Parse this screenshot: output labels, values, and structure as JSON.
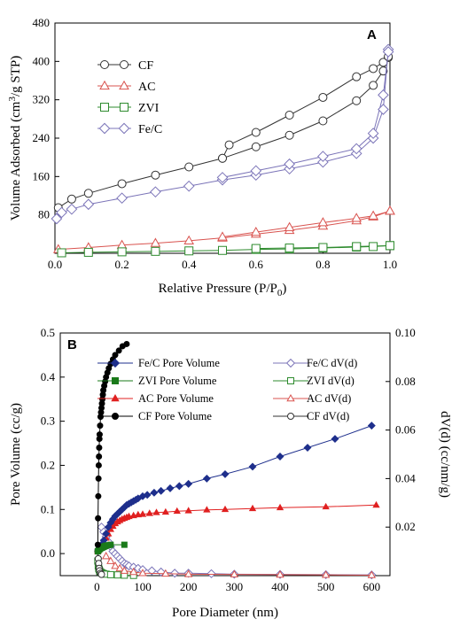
{
  "chart_data": [
    {
      "type": "scatter",
      "panel": "A",
      "xlabel": "Relative Pressure (P/P",
      "xlabel_sub": "0",
      "xlabel_tail": ")",
      "ylabel": "Volume Adsorbed (cm",
      "ylabel_sup": "3",
      "ylabel_tail": "/g STP)",
      "xlim": [
        0.0,
        1.0
      ],
      "ylim": [
        0,
        480
      ],
      "xticks": [
        "0.0",
        "0.2",
        "0.4",
        "0.6",
        "0.8",
        "1.0"
      ],
      "yticks": [
        "80",
        "160",
        "240",
        "320",
        "400",
        "480"
      ],
      "legend_position": "upper-left",
      "series": [
        {
          "name": "CF",
          "color": "#333333",
          "marker": "circle",
          "adsorption": [
            [
              0.01,
              95
            ],
            [
              0.05,
              113
            ],
            [
              0.1,
              125
            ],
            [
              0.2,
              145
            ],
            [
              0.3,
              163
            ],
            [
              0.4,
              180
            ],
            [
              0.5,
              198
            ],
            [
              0.6,
              222
            ],
            [
              0.7,
              246
            ],
            [
              0.8,
              276
            ],
            [
              0.9,
              318
            ],
            [
              0.95,
              350
            ],
            [
              0.98,
              380
            ],
            [
              0.995,
              408
            ]
          ],
          "desorption": [
            [
              0.5,
              198
            ],
            [
              0.52,
              226
            ],
            [
              0.6,
              252
            ],
            [
              0.7,
              288
            ],
            [
              0.8,
              325
            ],
            [
              0.9,
              368
            ],
            [
              0.95,
              385
            ],
            [
              0.98,
              398
            ],
            [
              0.995,
              410
            ]
          ]
        },
        {
          "name": "AC",
          "color": "#d9534f",
          "marker": "triangle",
          "adsorption": [
            [
              0.01,
              8
            ],
            [
              0.1,
              12
            ],
            [
              0.2,
              17
            ],
            [
              0.3,
              21
            ],
            [
              0.4,
              26
            ],
            [
              0.5,
              32
            ],
            [
              0.6,
              40
            ],
            [
              0.7,
              48
            ],
            [
              0.8,
              57
            ],
            [
              0.9,
              68
            ],
            [
              0.95,
              76
            ],
            [
              1.0,
              88
            ]
          ],
          "desorption": [
            [
              0.5,
              34
            ],
            [
              0.6,
              44
            ],
            [
              0.7,
              54
            ],
            [
              0.8,
              64
            ],
            [
              0.9,
              73
            ],
            [
              0.95,
              78
            ],
            [
              1.0,
              88
            ]
          ]
        },
        {
          "name": "ZVI",
          "color": "#2e8b2e",
          "marker": "square",
          "adsorption": [
            [
              0.02,
              1
            ],
            [
              0.1,
              2
            ],
            [
              0.2,
              3
            ],
            [
              0.3,
              4
            ],
            [
              0.4,
              5
            ],
            [
              0.5,
              6
            ],
            [
              0.6,
              8
            ],
            [
              0.7,
              9
            ],
            [
              0.8,
              11
            ],
            [
              0.9,
              13
            ],
            [
              0.95,
              14
            ],
            [
              1.0,
              16
            ]
          ],
          "desorption": [
            [
              0.6,
              10
            ],
            [
              0.7,
              11
            ],
            [
              0.8,
              12
            ],
            [
              0.9,
              14
            ],
            [
              1.0,
              16
            ]
          ]
        },
        {
          "name": "Fe/C",
          "color": "#7b74b8",
          "marker": "diamond",
          "adsorption": [
            [
              0.005,
              72
            ],
            [
              0.02,
              85
            ],
            [
              0.05,
              92
            ],
            [
              0.1,
              102
            ],
            [
              0.2,
              115
            ],
            [
              0.3,
              128
            ],
            [
              0.4,
              140
            ],
            [
              0.5,
              153
            ],
            [
              0.6,
              163
            ],
            [
              0.7,
              176
            ],
            [
              0.8,
              190
            ],
            [
              0.9,
              208
            ],
            [
              0.95,
              240
            ],
            [
              0.98,
              300
            ],
            [
              0.995,
              425
            ]
          ],
          "desorption": [
            [
              0.5,
              158
            ],
            [
              0.6,
              172
            ],
            [
              0.7,
              186
            ],
            [
              0.8,
              202
            ],
            [
              0.9,
              218
            ],
            [
              0.95,
              250
            ],
            [
              0.98,
              330
            ],
            [
              0.995,
              420
            ]
          ]
        }
      ]
    },
    {
      "type": "scatter",
      "panel": "B",
      "xlabel": "Pore Diameter (nm)",
      "ylabel_left": "Pore Volume (cc/g)",
      "ylabel_right": "dV(d) (cc/nm/g)",
      "xlim": [
        -80,
        640
      ],
      "ylim_left": [
        -0.05,
        0.5
      ],
      "ylim_right": [
        0,
        0.1
      ],
      "xticks": [
        "0",
        "100",
        "200",
        "300",
        "400",
        "500",
        "600"
      ],
      "yticks_left": [
        "0.0",
        "0.1",
        "0.2",
        "0.3",
        "0.4",
        "0.5"
      ],
      "yticks_right": [
        "0.02",
        "0.04",
        "0.06",
        "0.08",
        "0.10"
      ],
      "legend_position": "top",
      "series": [
        {
          "name": "Fe/C Pore Volume",
          "axis": "left",
          "color": "#1e2f8c",
          "marker": "diamond-filled",
          "x": [
            3,
            10,
            15,
            20,
            25,
            30,
            35,
            40,
            45,
            50,
            55,
            60,
            65,
            70,
            75,
            80,
            85,
            90,
            100,
            110,
            125,
            140,
            160,
            180,
            200,
            240,
            280,
            340,
            400,
            460,
            520,
            600
          ],
          "y": [
            0.01,
            0.02,
            0.03,
            0.045,
            0.06,
            0.07,
            0.078,
            0.085,
            0.09,
            0.095,
            0.1,
            0.105,
            0.11,
            0.113,
            0.116,
            0.119,
            0.122,
            0.125,
            0.13,
            0.133,
            0.138,
            0.142,
            0.148,
            0.153,
            0.158,
            0.17,
            0.18,
            0.197,
            0.22,
            0.24,
            0.26,
            0.29
          ]
        },
        {
          "name": "ZVI Pore Volume",
          "axis": "left",
          "color": "#1a7a1a",
          "marker": "square-filled",
          "x": [
            2,
            4,
            6,
            8,
            10,
            12,
            14,
            16,
            18,
            20,
            25,
            30,
            60
          ],
          "y": [
            0.005,
            0.008,
            0.01,
            0.012,
            0.013,
            0.014,
            0.015,
            0.016,
            0.017,
            0.018,
            0.019,
            0.02,
            0.02
          ]
        },
        {
          "name": "AC Pore Volume",
          "axis": "left",
          "color": "#e02020",
          "marker": "triangle-filled",
          "x": [
            2,
            5,
            10,
            15,
            20,
            25,
            30,
            35,
            40,
            45,
            50,
            55,
            60,
            65,
            70,
            80,
            90,
            100,
            115,
            130,
            150,
            175,
            200,
            240,
            280,
            340,
            400,
            500,
            610
          ],
          "y": [
            0.005,
            0.01,
            0.015,
            0.025,
            0.035,
            0.045,
            0.055,
            0.062,
            0.068,
            0.072,
            0.075,
            0.078,
            0.08,
            0.082,
            0.084,
            0.086,
            0.088,
            0.089,
            0.091,
            0.093,
            0.094,
            0.096,
            0.097,
            0.099,
            0.1,
            0.102,
            0.104,
            0.106,
            0.11
          ]
        },
        {
          "name": "CF Pore Volume",
          "axis": "left",
          "color": "#000000",
          "marker": "circle-filled",
          "x": [
            2,
            2.5,
            3,
            3.5,
            4,
            4.5,
            5,
            5.5,
            6,
            7,
            8,
            9,
            10,
            11,
            12,
            13,
            14,
            16,
            18,
            20,
            23,
            26,
            30,
            35,
            40,
            48,
            56,
            65
          ],
          "y": [
            0.02,
            0.08,
            0.13,
            0.17,
            0.2,
            0.22,
            0.24,
            0.26,
            0.27,
            0.29,
            0.31,
            0.32,
            0.33,
            0.34,
            0.35,
            0.36,
            0.37,
            0.38,
            0.39,
            0.4,
            0.41,
            0.42,
            0.43,
            0.44,
            0.45,
            0.46,
            0.47,
            0.475
          ]
        },
        {
          "name": "Fe/C dV(d)",
          "axis": "right",
          "color": "#7b74b8",
          "marker": "diamond",
          "x": [
            10,
            15,
            20,
            25,
            30,
            35,
            40,
            45,
            50,
            55,
            60,
            65,
            70,
            80,
            90,
            100,
            120,
            140,
            170,
            200,
            250,
            300,
            400,
            500,
            600
          ],
          "y": [
            0.02,
            0.018,
            0.016,
            0.014,
            0.012,
            0.01,
            0.009,
            0.008,
            0.007,
            0.006,
            0.005,
            0.0045,
            0.004,
            0.0035,
            0.003,
            0.0025,
            0.002,
            0.0015,
            0.001,
            0.001,
            0.0008,
            0.0006,
            0.0005,
            0.0004,
            0.0003
          ]
        },
        {
          "name": "ZVI dV(d)",
          "axis": "right",
          "color": "#2e8b2e",
          "marker": "square",
          "x": [
            2,
            3,
            4,
            5,
            6,
            8,
            10,
            12,
            15,
            20,
            30,
            45,
            60,
            80
          ],
          "y": [
            0.006,
            0.004,
            0.003,
            0.0025,
            0.002,
            0.0015,
            0.0012,
            0.001,
            0.0008,
            0.0006,
            0.0004,
            0.0003,
            0.0002,
            0.0001
          ]
        },
        {
          "name": "AC dV(d)",
          "axis": "right",
          "color": "#d9534f",
          "marker": "triangle",
          "x": [
            20,
            30,
            40,
            50,
            60,
            80,
            100,
            150,
            200,
            300,
            400,
            500,
            600
          ],
          "y": [
            0.008,
            0.006,
            0.004,
            0.003,
            0.002,
            0.0015,
            0.001,
            0.0008,
            0.0006,
            0.0005,
            0.0004,
            0.0003,
            0.0002
          ]
        },
        {
          "name": "CF dV(d)",
          "axis": "right",
          "color": "#333333",
          "marker": "circle",
          "x": [
            2,
            3,
            4,
            5,
            6,
            8,
            10
          ],
          "y": [
            0.01,
            0.007,
            0.005,
            0.003,
            0.002,
            0.001,
            0.0005
          ]
        }
      ]
    }
  ]
}
